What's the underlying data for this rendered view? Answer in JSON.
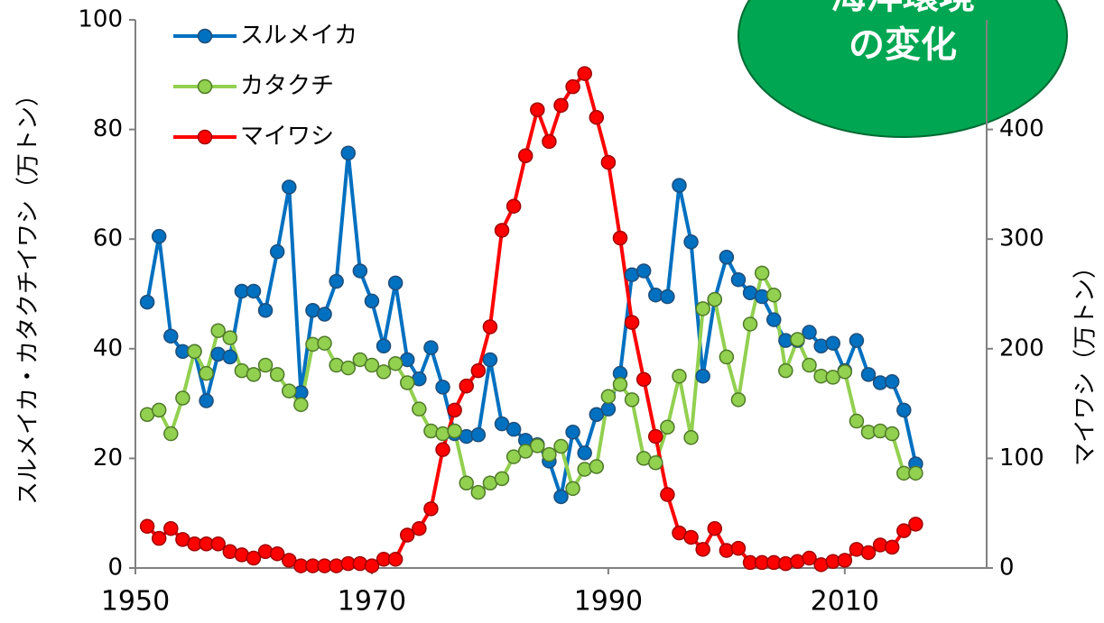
{
  "chart_data": {
    "type": "line",
    "annotation": [
      "海洋環境",
      "の変化"
    ],
    "y_label": "スルメイカ・カタクチイワシ（万トン）",
    "y2_label": "マイワシ（万トン）",
    "x": [
      1951,
      1952,
      1953,
      1954,
      1955,
      1956,
      1957,
      1958,
      1959,
      1960,
      1961,
      1962,
      1963,
      1964,
      1965,
      1966,
      1967,
      1968,
      1969,
      1970,
      1971,
      1972,
      1973,
      1974,
      1975,
      1976,
      1977,
      1978,
      1979,
      1980,
      1981,
      1982,
      1983,
      1984,
      1985,
      1986,
      1987,
      1988,
      1989,
      1990,
      1991,
      1992,
      1993,
      1994,
      1995,
      1996,
      1997,
      1998,
      1999,
      2000,
      2001,
      2002,
      2003,
      2004,
      2005,
      2006,
      2007,
      2008,
      2009,
      2010,
      2011,
      2012,
      2013,
      2014,
      2015,
      2016
    ],
    "xlim": [
      1950,
      2022
    ],
    "xticks": [
      1950,
      1970,
      1990,
      2010
    ],
    "ylim": [
      0,
      100
    ],
    "yticks": [
      0,
      20,
      40,
      60,
      80,
      100
    ],
    "y2lim": [
      0,
      500
    ],
    "y2ticks": [
      0,
      100,
      200,
      300,
      400
    ],
    "grid": false,
    "legend": "upper left",
    "series": [
      {
        "name": "スルメイカ",
        "color": "#0070c0",
        "values": [
          48.5,
          60.5,
          42.3,
          39.5,
          39.5,
          30.5,
          39,
          38.5,
          50.5,
          50.5,
          47,
          57.7,
          69.5,
          32,
          47,
          46.3,
          52.3,
          75.7,
          54.2,
          48.7,
          40.5,
          52,
          38,
          34.5,
          40.2,
          33,
          24.5,
          24,
          24.3,
          38,
          26.3,
          25.3,
          23.3,
          22.5,
          19.5,
          13,
          24.8,
          21,
          28,
          29,
          35.5,
          53.5,
          54.2,
          49.8,
          49.5,
          69.8,
          59.5,
          35,
          49,
          56.7,
          52.6,
          50.2,
          49.5,
          45.3,
          41.5,
          41.5,
          43,
          40.5,
          41,
          36,
          41.5,
          35.3,
          33.8,
          34,
          28.8,
          19
        ]
      },
      {
        "name": "カタクチ",
        "color": "#92d050",
        "values": [
          28,
          28.8,
          24.5,
          31,
          39.5,
          35.5,
          43.3,
          42,
          36,
          35.3,
          37,
          35.3,
          32.3,
          29.8,
          40.8,
          41,
          37,
          36.5,
          38,
          37,
          35.8,
          37.3,
          33.8,
          29,
          25,
          24.5,
          25,
          15.5,
          13.8,
          15.5,
          16.3,
          20.3,
          21.3,
          22.3,
          20.7,
          22.2,
          14.5,
          18,
          18.5,
          31.3,
          33.5,
          30.7,
          20,
          19.2,
          25.7,
          35,
          23.8,
          47.3,
          49,
          38.5,
          30.7,
          44.5,
          53.8,
          49.8,
          36,
          41.7,
          37,
          35,
          34.8,
          35.8,
          26.8,
          24.8,
          25,
          24.5,
          17.3,
          17.3
        ]
      },
      {
        "name": "マイワシ",
        "color": "#ff0000",
        "axis": "y2",
        "values": [
          38,
          27,
          36,
          26,
          22,
          22,
          22,
          15,
          12,
          9,
          15,
          13,
          7,
          2,
          2,
          2,
          2,
          4,
          4,
          2,
          8,
          8,
          30,
          36,
          54,
          108,
          144,
          166,
          180,
          220,
          308,
          330,
          376,
          418,
          389,
          422,
          439,
          451,
          411,
          370,
          301,
          224,
          172,
          120,
          67,
          32,
          28,
          17,
          36,
          16,
          18,
          5,
          5,
          5,
          4,
          6,
          9,
          3,
          6,
          7,
          17,
          14,
          21,
          19,
          34,
          40
        ]
      }
    ]
  }
}
